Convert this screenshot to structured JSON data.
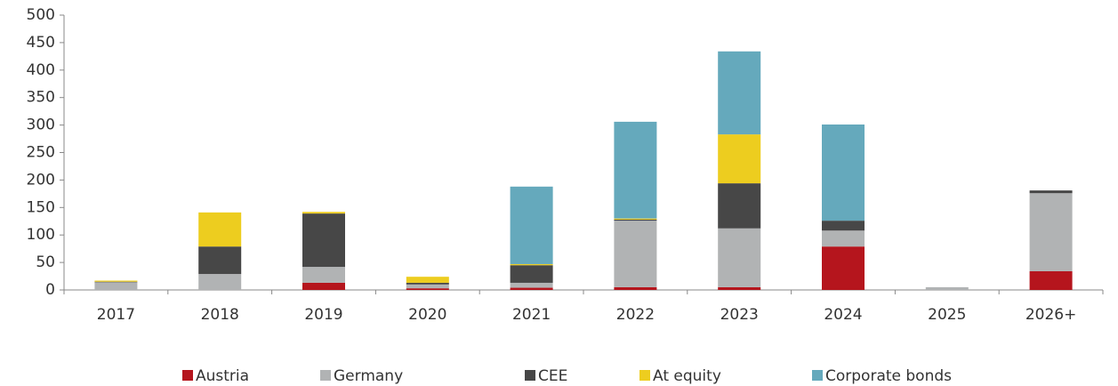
{
  "chart_data": {
    "type": "stacked_bar",
    "categories": [
      "2017",
      "2018",
      "2019",
      "2020",
      "2021",
      "2022",
      "2023",
      "2024",
      "2025",
      "2026+"
    ],
    "series": [
      {
        "name": "Austria",
        "color": "#b5151d",
        "values": [
          0,
          0,
          13,
          3,
          4,
          5,
          5,
          79,
          0,
          34
        ]
      },
      {
        "name": "Germany",
        "color": "#b1b3b4",
        "values": [
          14,
          29,
          29,
          7,
          9,
          121,
          107,
          29,
          5,
          142
        ]
      },
      {
        "name": "CEE",
        "color": "#474747",
        "values": [
          1,
          50,
          97,
          3,
          32,
          2,
          82,
          18,
          0,
          5
        ]
      },
      {
        "name": "At equity",
        "color": "#edcd1f",
        "values": [
          2,
          62,
          3,
          11,
          2,
          2,
          89,
          0,
          0,
          0
        ]
      },
      {
        "name": "Corporate bonds",
        "color": "#65a9bc",
        "values": [
          0,
          0,
          0,
          0,
          141,
          176,
          151,
          175,
          0,
          0
        ]
      }
    ],
    "ylim": [
      0,
      500
    ],
    "yticks": [
      0,
      50,
      100,
      150,
      200,
      250,
      300,
      350,
      400,
      450,
      500
    ],
    "legend": "bottom"
  }
}
